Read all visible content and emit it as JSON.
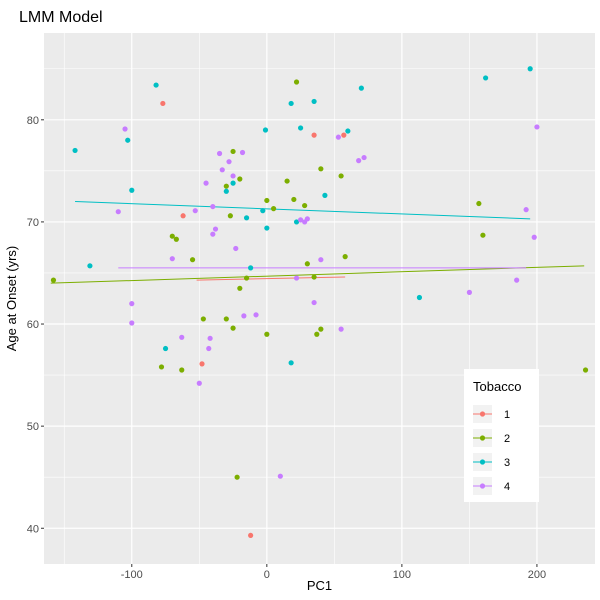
{
  "chart_data": {
    "type": "scatter",
    "title": "LMM Model",
    "xlabel": "PC1",
    "ylabel": "Age at Onset (yrs)",
    "xlim": [
      -165,
      243
    ],
    "ylim": [
      36.5,
      88.5
    ],
    "x_ticks": [
      -100,
      0,
      100,
      200
    ],
    "y_ticks": [
      40,
      50,
      60,
      70,
      80
    ],
    "x_tick_labels": [
      "-100",
      "0",
      "100",
      "200"
    ],
    "y_tick_labels": [
      "40",
      "50",
      "60",
      "70",
      "80"
    ],
    "grid": true,
    "legend": {
      "title": "Tobacco",
      "position": "bottom-right"
    },
    "series": [
      {
        "name": "1",
        "color": "#F8766D",
        "points": [
          {
            "x": -77,
            "y": 81.6
          },
          {
            "x": -62,
            "y": 70.6
          },
          {
            "x": 35,
            "y": 78.5
          },
          {
            "x": 57,
            "y": 78.5
          },
          {
            "x": -48,
            "y": 56.1
          },
          {
            "x": -12,
            "y": 39.3
          }
        ],
        "fit": [
          {
            "x": -52,
            "y": 64.3
          },
          {
            "x": 58,
            "y": 64.6
          }
        ]
      },
      {
        "name": "2",
        "color": "#7CAE00",
        "points": [
          {
            "x": -158,
            "y": 64.3
          },
          {
            "x": -70,
            "y": 68.6
          },
          {
            "x": -67,
            "y": 68.3
          },
          {
            "x": -55,
            "y": 66.3
          },
          {
            "x": -78,
            "y": 55.8
          },
          {
            "x": -63,
            "y": 55.5
          },
          {
            "x": -47,
            "y": 60.5
          },
          {
            "x": -30,
            "y": 60.5
          },
          {
            "x": -25,
            "y": 59.6
          },
          {
            "x": -30,
            "y": 73.5
          },
          {
            "x": -25,
            "y": 76.9
          },
          {
            "x": -27,
            "y": 70.6
          },
          {
            "x": -20,
            "y": 74.2
          },
          {
            "x": -20,
            "y": 63.5
          },
          {
            "x": -15,
            "y": 64.5
          },
          {
            "x": -22,
            "y": 45.0
          },
          {
            "x": 0,
            "y": 72.1
          },
          {
            "x": 5,
            "y": 71.3
          },
          {
            "x": 15,
            "y": 74.0
          },
          {
            "x": 20,
            "y": 72.2
          },
          {
            "x": 22,
            "y": 83.7
          },
          {
            "x": 28,
            "y": 71.6
          },
          {
            "x": 30,
            "y": 65.9
          },
          {
            "x": 35,
            "y": 64.6
          },
          {
            "x": 40,
            "y": 75.2
          },
          {
            "x": 55,
            "y": 74.5
          },
          {
            "x": 58,
            "y": 66.6
          },
          {
            "x": 37,
            "y": 59.0
          },
          {
            "x": 40,
            "y": 59.5
          },
          {
            "x": 0,
            "y": 59.0
          },
          {
            "x": 157,
            "y": 71.8
          },
          {
            "x": 160,
            "y": 68.7
          },
          {
            "x": 236,
            "y": 55.5
          }
        ],
        "fit": [
          {
            "x": -160,
            "y": 64.0
          },
          {
            "x": 235,
            "y": 65.7
          }
        ]
      },
      {
        "name": "3",
        "color": "#00BFC4",
        "points": [
          {
            "x": -82,
            "y": 83.4
          },
          {
            "x": -142,
            "y": 77.0
          },
          {
            "x": -103,
            "y": 78.0
          },
          {
            "x": -100,
            "y": 73.1
          },
          {
            "x": -131,
            "y": 65.7
          },
          {
            "x": -75,
            "y": 57.6
          },
          {
            "x": -30,
            "y": 73.0
          },
          {
            "x": -25,
            "y": 73.8
          },
          {
            "x": -15,
            "y": 70.4
          },
          {
            "x": -12,
            "y": 65.5
          },
          {
            "x": -3,
            "y": 71.1
          },
          {
            "x": 0,
            "y": 69.4
          },
          {
            "x": -1,
            "y": 79.0
          },
          {
            "x": 18,
            "y": 81.6
          },
          {
            "x": 25,
            "y": 79.2
          },
          {
            "x": 35,
            "y": 81.8
          },
          {
            "x": 43,
            "y": 72.6
          },
          {
            "x": 60,
            "y": 78.9
          },
          {
            "x": 70,
            "y": 83.1
          },
          {
            "x": 22,
            "y": 70.0
          },
          {
            "x": 18,
            "y": 56.2
          },
          {
            "x": 113,
            "y": 62.6
          },
          {
            "x": 162,
            "y": 84.1
          },
          {
            "x": 195,
            "y": 85.0
          }
        ],
        "fit": [
          {
            "x": -142,
            "y": 72.0
          },
          {
            "x": 195,
            "y": 70.3
          }
        ]
      },
      {
        "name": "4",
        "color": "#C77CFF",
        "points": [
          {
            "x": -105,
            "y": 79.1
          },
          {
            "x": -110,
            "y": 71.0
          },
          {
            "x": -100,
            "y": 62.0
          },
          {
            "x": -100,
            "y": 60.1
          },
          {
            "x": -70,
            "y": 66.4
          },
          {
            "x": -63,
            "y": 58.7
          },
          {
            "x": -53,
            "y": 71.1
          },
          {
            "x": -45,
            "y": 73.8
          },
          {
            "x": -40,
            "y": 71.5
          },
          {
            "x": -40,
            "y": 68.8
          },
          {
            "x": -38,
            "y": 69.3
          },
          {
            "x": -42,
            "y": 58.6
          },
          {
            "x": -43,
            "y": 57.6
          },
          {
            "x": -50,
            "y": 54.2
          },
          {
            "x": -35,
            "y": 76.7
          },
          {
            "x": -33,
            "y": 75.1
          },
          {
            "x": -28,
            "y": 75.9
          },
          {
            "x": -25,
            "y": 74.5
          },
          {
            "x": -18,
            "y": 76.8
          },
          {
            "x": -23,
            "y": 67.4
          },
          {
            "x": -17,
            "y": 60.8
          },
          {
            "x": -8,
            "y": 60.9
          },
          {
            "x": 10,
            "y": 45.1
          },
          {
            "x": 25,
            "y": 70.2
          },
          {
            "x": 28,
            "y": 70.0
          },
          {
            "x": 30,
            "y": 70.3
          },
          {
            "x": 35,
            "y": 62.1
          },
          {
            "x": 40,
            "y": 66.3
          },
          {
            "x": 22,
            "y": 64.5
          },
          {
            "x": 53,
            "y": 78.3
          },
          {
            "x": 55,
            "y": 59.5
          },
          {
            "x": 68,
            "y": 76.0
          },
          {
            "x": 72,
            "y": 76.3
          },
          {
            "x": 150,
            "y": 63.1
          },
          {
            "x": 185,
            "y": 64.3
          },
          {
            "x": 192,
            "y": 71.2
          },
          {
            "x": 198,
            "y": 68.5
          },
          {
            "x": 200,
            "y": 79.3
          }
        ],
        "fit": [
          {
            "x": -110,
            "y": 65.5
          },
          {
            "x": 192,
            "y": 65.5
          }
        ]
      }
    ]
  }
}
